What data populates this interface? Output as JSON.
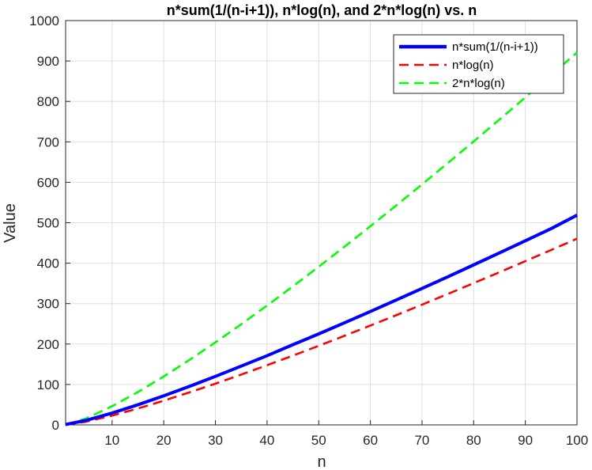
{
  "chart_data": {
    "type": "line",
    "title": "n*sum(1/(n-i+1)), n*log(n), and 2*n*log(n) vs. n",
    "xlabel": "n",
    "ylabel": "Value",
    "xlim": [
      1,
      100
    ],
    "ylim": [
      0,
      1000
    ],
    "xticks": [
      10,
      20,
      30,
      40,
      50,
      60,
      70,
      80,
      90,
      100
    ],
    "yticks": [
      0,
      100,
      200,
      300,
      400,
      500,
      600,
      700,
      800,
      900,
      1000
    ],
    "grid": true,
    "legend_position": "top-right",
    "x": [
      1,
      5,
      10,
      15,
      20,
      25,
      30,
      35,
      40,
      45,
      50,
      55,
      60,
      65,
      70,
      75,
      80,
      85,
      90,
      95,
      100
    ],
    "series": [
      {
        "name": "n*sum(1/(n-i+1))",
        "color": "#0000ff",
        "style": "solid",
        "values": [
          1,
          11.4,
          29.3,
          49.8,
          72.0,
          95.4,
          120.0,
          145.4,
          171.1,
          198.4,
          225.0,
          252.5,
          280.5,
          308.8,
          337.5,
          366.4,
          395.8,
          425.4,
          455.3,
          485.4,
          518.7
        ]
      },
      {
        "name": "n*log(n)",
        "color": "#ff0000",
        "style": "dashed",
        "values": [
          0,
          8.0,
          23.0,
          40.6,
          59.9,
          80.5,
          102.0,
          124.4,
          147.6,
          171.3,
          195.6,
          220.4,
          245.7,
          271.3,
          297.4,
          323.8,
          350.6,
          377.6,
          405.0,
          432.6,
          460.5
        ]
      },
      {
        "name": "2*n*log(n)",
        "color": "#00ff00",
        "style": "dashed",
        "values": [
          0,
          16.1,
          46.1,
          81.2,
          119.8,
          160.9,
          204.1,
          248.9,
          295.1,
          342.6,
          391.2,
          440.8,
          491.3,
          542.6,
          594.8,
          647.6,
          701.1,
          755.3,
          810.0,
          865.2,
          921.0
        ]
      }
    ]
  }
}
